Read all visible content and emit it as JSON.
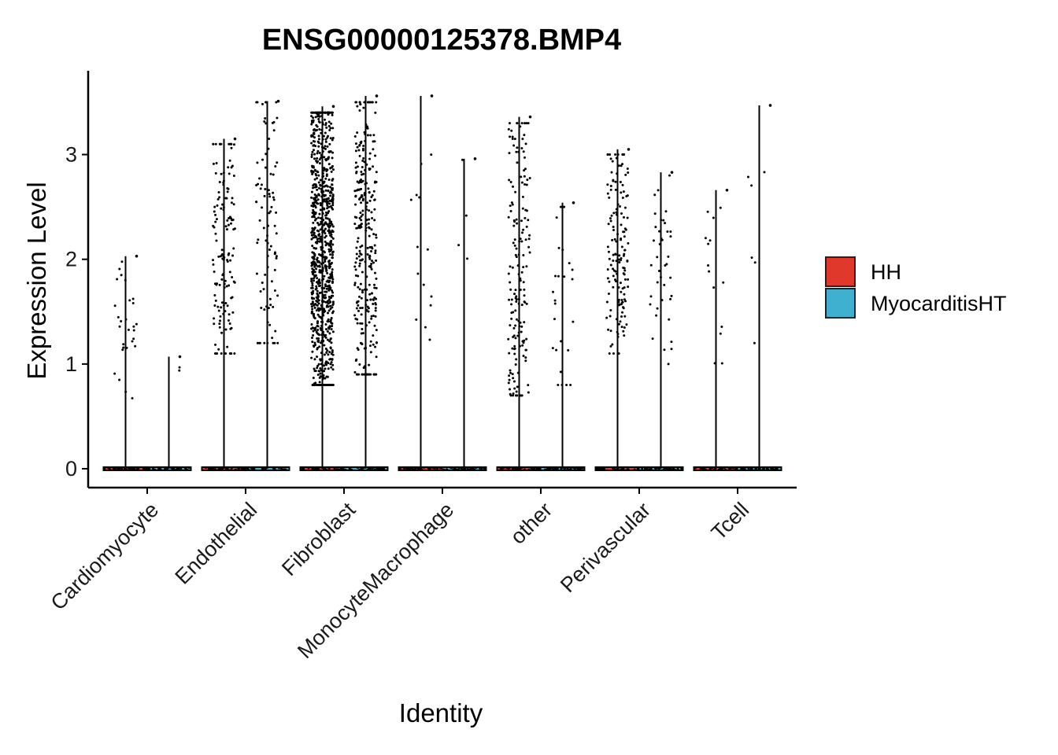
{
  "chart_data": {
    "type": "violin",
    "title": "ENSG00000125378.BMP4",
    "xlabel": "Identity",
    "ylabel": "Expression Level",
    "ylim": [
      -0.18,
      3.8
    ],
    "yticks": [
      0,
      1,
      2,
      3
    ],
    "categories": [
      "Cardiomyocyte",
      "Endothelial",
      "Fibroblast",
      "MonocyteMacrophage",
      "other",
      "Perivascular",
      "Tcell"
    ],
    "legend": {
      "position": "right",
      "entries": [
        {
          "name": "HH",
          "color": "#E0392B"
        },
        {
          "name": "MyocarditisHT",
          "color": "#3FB0CF"
        }
      ]
    },
    "point_color": "#000000",
    "series": [
      {
        "name": "HH",
        "max": [
          2.03,
          3.15,
          3.46,
          3.56,
          3.36,
          3.05,
          2.66
        ],
        "approx_points_above_zero": [
          28,
          140,
          900,
          14,
          170,
          150,
          14
        ],
        "expressing_range": [
          [
            0.6,
            2.0
          ],
          [
            1.1,
            3.1
          ],
          [
            0.8,
            3.4
          ],
          [
            0.8,
            3.5
          ],
          [
            0.7,
            3.3
          ],
          [
            1.1,
            3.0
          ],
          [
            1.0,
            2.6
          ]
        ]
      },
      {
        "name": "MyocarditisHT",
        "max": [
          1.07,
          3.51,
          3.56,
          2.96,
          2.54,
          2.83,
          3.47
        ],
        "approx_points_above_zero": [
          2,
          90,
          300,
          4,
          25,
          40,
          6
        ],
        "expressing_range": [
          [
            0.9,
            1.07
          ],
          [
            1.2,
            3.5
          ],
          [
            0.9,
            3.5
          ],
          [
            1.4,
            2.95
          ],
          [
            0.8,
            2.5
          ],
          [
            1.0,
            2.8
          ],
          [
            1.2,
            3.45
          ]
        ]
      }
    ]
  }
}
